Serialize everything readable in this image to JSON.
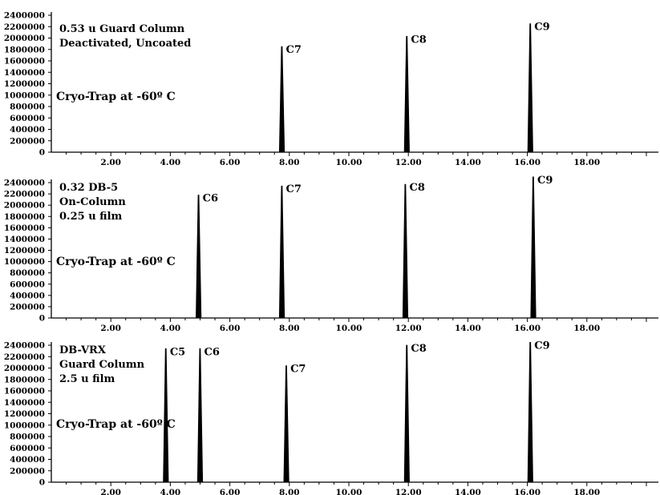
{
  "chart_data": [
    {
      "type": "line",
      "title": "",
      "xlabel": "",
      "ylabel": "",
      "xlim": [
        0,
        20
      ],
      "ylim": [
        0,
        2400000
      ],
      "x_ticks": [
        "2.00",
        "4.00",
        "6.00",
        "8.00",
        "10.00",
        "12.00",
        "14.00",
        "16.00",
        "18.00"
      ],
      "y_ticks": [
        "0",
        "200000",
        "400000",
        "600000",
        "800000",
        "1000000",
        "1200000",
        "1400000",
        "1600000",
        "1800000",
        "2000000",
        "2200000",
        "2400000"
      ],
      "annotations": [
        "0.53 u  Guard Column",
        "Deactivated, Uncoated",
        "Cryo-Trap at -60º C"
      ],
      "peaks": [
        {
          "label": "C7",
          "x": 7.75,
          "y": 1850000
        },
        {
          "label": "C8",
          "x": 11.95,
          "y": 2030000
        },
        {
          "label": "C9",
          "x": 16.1,
          "y": 2250000
        }
      ]
    },
    {
      "type": "line",
      "title": "",
      "xlabel": "",
      "ylabel": "",
      "xlim": [
        0,
        20
      ],
      "ylim": [
        0,
        2400000
      ],
      "x_ticks": [
        "2.00",
        "4.00",
        "6.00",
        "8.00",
        "10.00",
        "12.00",
        "14.00",
        "16.00",
        "18.00"
      ],
      "y_ticks": [
        "0",
        "200000",
        "400000",
        "600000",
        "800000",
        "1000000",
        "1200000",
        "1400000",
        "1600000",
        "1800000",
        "2000000",
        "2200000",
        "2400000"
      ],
      "annotations": [
        "0.32 DB-5",
        "On-Column",
        "0.25 u film",
        "Cryo-Trap at -60º C"
      ],
      "peaks": [
        {
          "label": "C6",
          "x": 4.95,
          "y": 2180000
        },
        {
          "label": "C7",
          "x": 7.75,
          "y": 2340000
        },
        {
          "label": "C8",
          "x": 11.9,
          "y": 2370000
        },
        {
          "label": "C9",
          "x": 16.2,
          "y": 2500000
        }
      ]
    },
    {
      "type": "line",
      "title": "",
      "xlabel": "",
      "ylabel": "",
      "xlim": [
        0,
        20
      ],
      "ylim": [
        0,
        2400000
      ],
      "x_ticks": [
        "2.00",
        "4.00",
        "6.00",
        "8.00",
        "10.00",
        "12.00",
        "14.00",
        "16.00",
        "18.00"
      ],
      "y_ticks": [
        "0",
        "200000",
        "400000",
        "600000",
        "800000",
        "1000000",
        "1200000",
        "1400000",
        "1600000",
        "1800000",
        "2000000",
        "2200000",
        "2400000"
      ],
      "annotations": [
        "DB-VRX",
        "Guard Column",
        "2.5 u film",
        "Cryo-Trap at -60º C"
      ],
      "peaks": [
        {
          "label": "C5",
          "x": 3.85,
          "y": 2340000
        },
        {
          "label": "C6",
          "x": 5.0,
          "y": 2340000
        },
        {
          "label": "C7",
          "x": 7.9,
          "y": 2040000
        },
        {
          "label": "C8",
          "x": 11.95,
          "y": 2400000
        },
        {
          "label": "C9",
          "x": 16.1,
          "y": 2450000
        }
      ]
    }
  ]
}
